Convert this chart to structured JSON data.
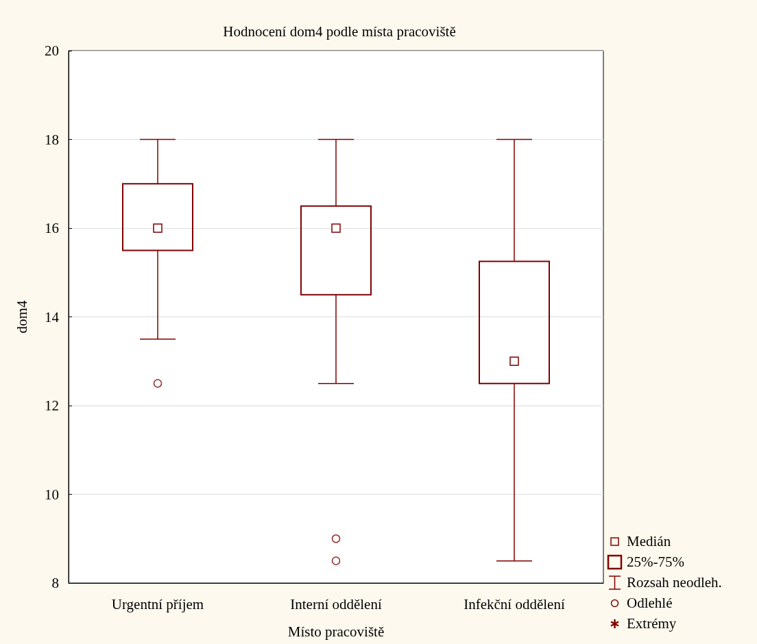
{
  "chart_data": {
    "type": "box",
    "title": "Hodnocení dom4 podle místa pracoviště",
    "xlabel": "Místo pracoviště",
    "ylabel": "dom4",
    "categories": [
      "Urgentní příjem",
      "Interní oddělení",
      "Infekční oddělení"
    ],
    "series": [
      {
        "color": "#800000",
        "boxes": [
          {
            "low": 13.5,
            "q1": 15.5,
            "median": 16,
            "q3": 17,
            "high": 18,
            "outliers": [
              12.5
            ]
          },
          {
            "low": 12.5,
            "q1": 14.5,
            "median": 16,
            "q3": 16.5,
            "high": 18,
            "outliers": [
              9,
              8.5
            ]
          },
          {
            "low": 8.5,
            "q1": 12.5,
            "median": 13,
            "q3": 15.25,
            "high": 18
          }
        ]
      }
    ],
    "ylim": [
      8,
      20
    ],
    "yticks": [
      8,
      10,
      12,
      14,
      16,
      18,
      20
    ],
    "grid": "y",
    "marker": "square",
    "annotations": [
      "Medián",
      "25%-75%",
      "Rozsah neodleh.",
      "Odlehlé",
      "Extrémy"
    ]
  }
}
